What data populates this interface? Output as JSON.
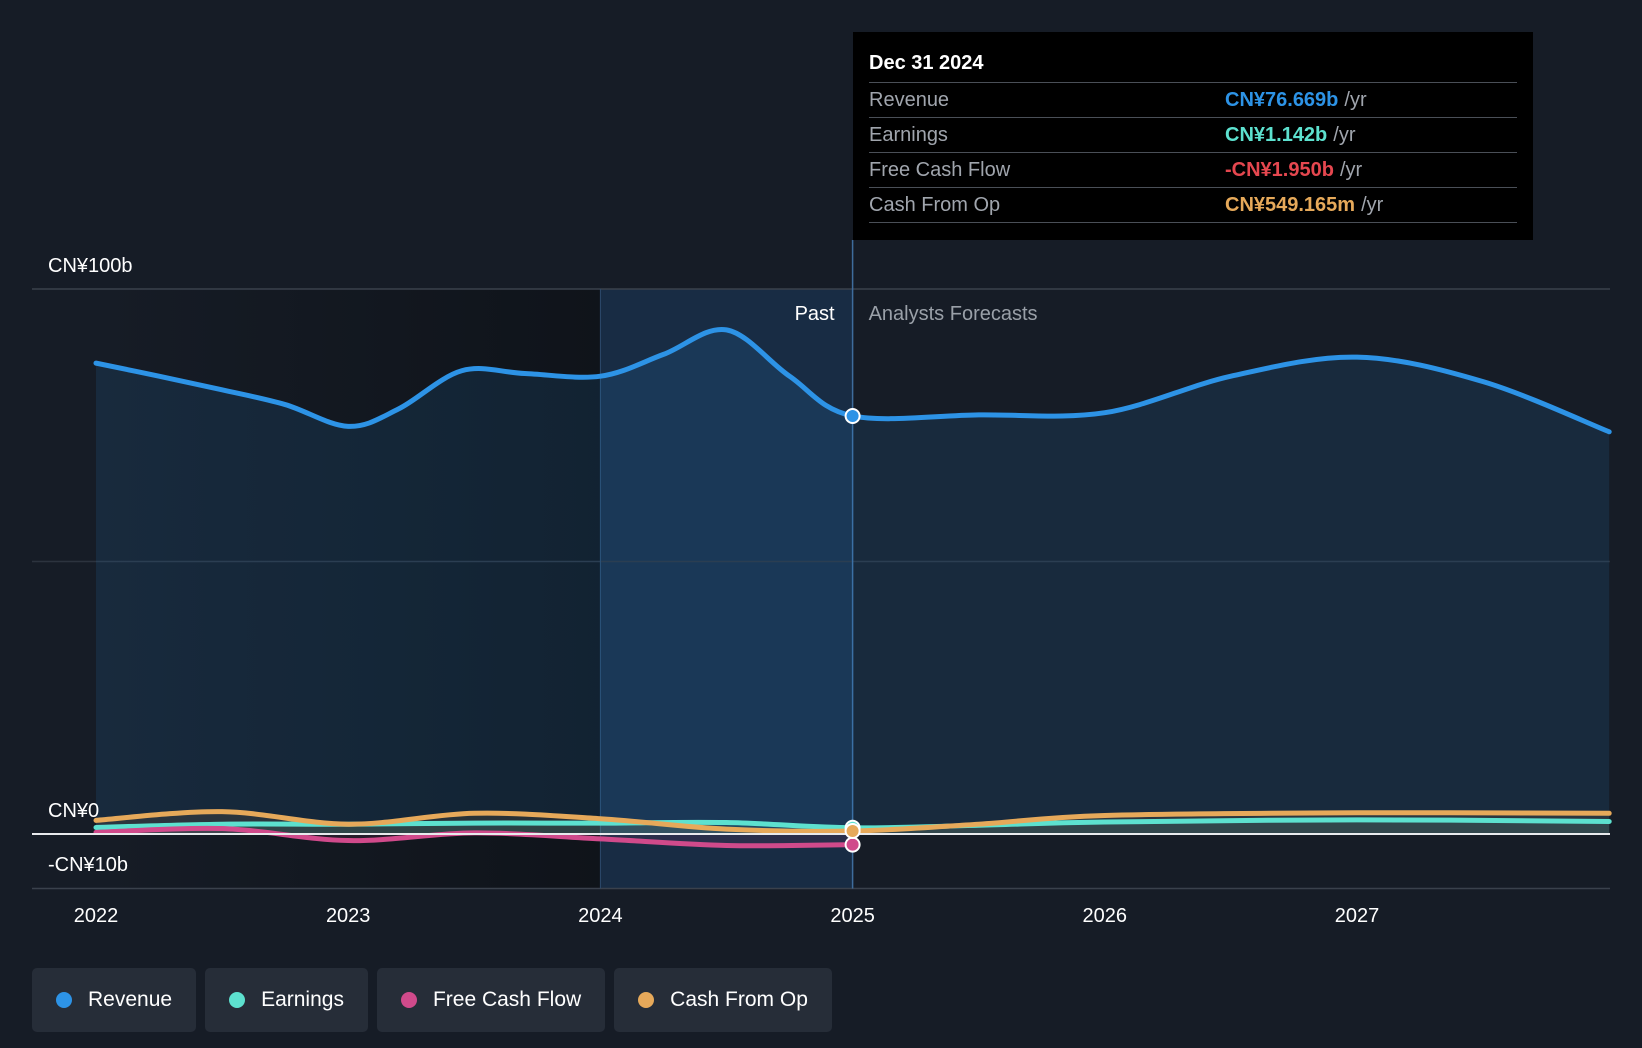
{
  "chart_data": {
    "type": "area",
    "title": "",
    "xlabel": "",
    "ylabel": "",
    "x_ticks": [
      "2022",
      "2023",
      "2024",
      "2025",
      "2026",
      "2027"
    ],
    "y_labels": {
      "top": "CN¥100b",
      "zero": "CN¥0",
      "bottom": "-CN¥10b"
    },
    "ylim": [
      -10,
      100
    ],
    "xlim": [
      2022.0,
      2028.0
    ],
    "highlight_start": 2024.0,
    "divider_x": 2025.0,
    "past_label": "Past",
    "forecast_label": "Analysts Forecasts",
    "series": [
      {
        "name": "Revenue",
        "color": "#2d93e6",
        "points": [
          [
            2022.0,
            86.4
          ],
          [
            2022.25,
            84.0
          ],
          [
            2022.5,
            81.5
          ],
          [
            2022.75,
            78.8
          ],
          [
            2023.0,
            74.8
          ],
          [
            2023.2,
            78.0
          ],
          [
            2023.45,
            85.0
          ],
          [
            2023.7,
            84.5
          ],
          [
            2024.0,
            84.0
          ],
          [
            2024.25,
            88.0
          ],
          [
            2024.5,
            92.5
          ],
          [
            2024.75,
            84.0
          ],
          [
            2025.0,
            76.7
          ],
          [
            2025.5,
            76.9
          ],
          [
            2026.0,
            77.3
          ],
          [
            2026.5,
            84.0
          ],
          [
            2027.0,
            87.5
          ],
          [
            2027.5,
            83.0
          ],
          [
            2028.0,
            73.8
          ]
        ]
      },
      {
        "name": "Earnings",
        "color": "#5de1cf",
        "points": [
          [
            2022.0,
            1.2
          ],
          [
            2022.5,
            1.8
          ],
          [
            2023.0,
            1.8
          ],
          [
            2023.5,
            2.0
          ],
          [
            2024.0,
            2.0
          ],
          [
            2024.5,
            2.1
          ],
          [
            2025.0,
            1.142
          ],
          [
            2025.5,
            1.6
          ],
          [
            2026.0,
            2.2
          ],
          [
            2027.0,
            2.6
          ],
          [
            2028.0,
            2.3
          ]
        ]
      },
      {
        "name": "Free Cash Flow",
        "color": "#d04a8b",
        "points": [
          [
            2022.0,
            0.3
          ],
          [
            2022.5,
            1.0
          ],
          [
            2023.0,
            -1.2
          ],
          [
            2023.5,
            0.2
          ],
          [
            2024.0,
            -0.9
          ],
          [
            2024.5,
            -2.1
          ],
          [
            2025.0,
            -1.95
          ]
        ]
      },
      {
        "name": "Cash From Op",
        "color": "#e6a95a",
        "points": [
          [
            2022.0,
            2.5
          ],
          [
            2022.5,
            4.1
          ],
          [
            2023.0,
            1.8
          ],
          [
            2023.5,
            3.8
          ],
          [
            2024.0,
            2.8
          ],
          [
            2024.5,
            0.9
          ],
          [
            2025.0,
            0.549
          ],
          [
            2025.5,
            1.8
          ],
          [
            2026.0,
            3.4
          ],
          [
            2027.0,
            3.9
          ],
          [
            2028.0,
            3.8
          ]
        ]
      }
    ]
  },
  "tooltip": {
    "date": "Dec 31 2024",
    "unit": "/yr",
    "rows": [
      {
        "label": "Revenue",
        "value": "CN¥76.669b",
        "color": "#2d93e6"
      },
      {
        "label": "Earnings",
        "value": "CN¥1.142b",
        "color": "#5de1cf"
      },
      {
        "label": "Free Cash Flow",
        "value": "-CN¥1.950b",
        "color": "#e5474f"
      },
      {
        "label": "Cash From Op",
        "value": "CN¥549.165m",
        "color": "#e6a95a"
      }
    ]
  },
  "legend": [
    {
      "label": "Revenue",
      "color": "#2d93e6"
    },
    {
      "label": "Earnings",
      "color": "#5de1cf"
    },
    {
      "label": "Free Cash Flow",
      "color": "#d04a8b"
    },
    {
      "label": "Cash From Op",
      "color": "#e6a95a"
    }
  ]
}
